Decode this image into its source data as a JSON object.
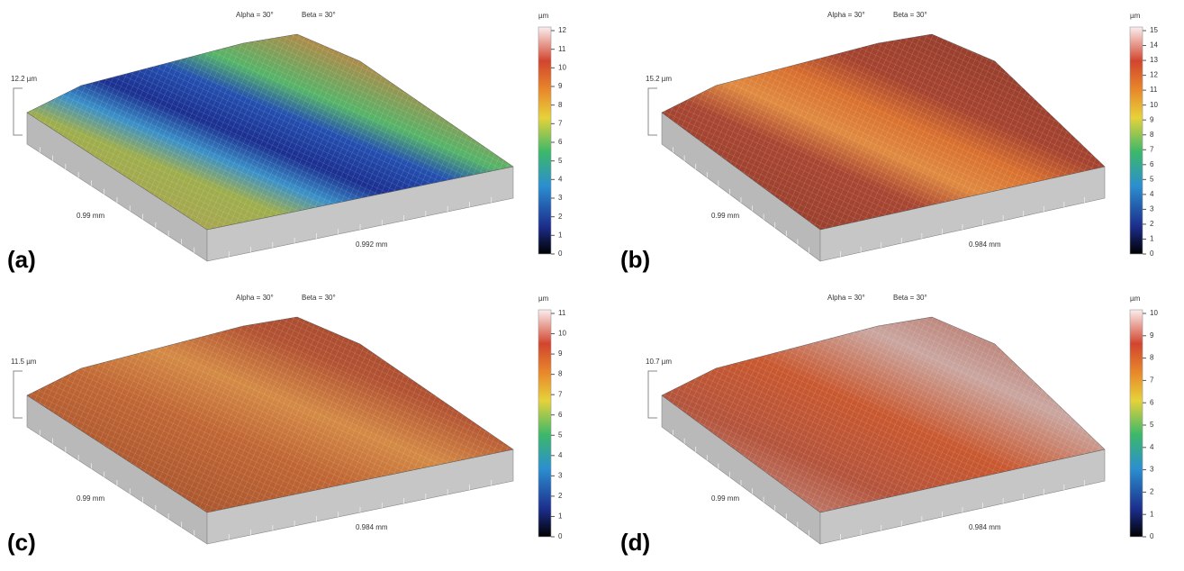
{
  "panels": [
    {
      "label": "(a)",
      "alpha": "Alpha = 30°",
      "beta": "Beta = 30°",
      "unit": "µm",
      "z_label": "12.2 µm",
      "x_label": "0.99 mm",
      "y_label": "0.992 mm",
      "colorbar_ticks": [
        0,
        1,
        2,
        3,
        4,
        5,
        6,
        7,
        8,
        9,
        10,
        11,
        12
      ]
    },
    {
      "label": "(b)",
      "alpha": "Alpha = 30°",
      "beta": "Beta = 30°",
      "unit": "µm",
      "z_label": "15.2 µm",
      "x_label": "0.99 mm",
      "y_label": "0.984 mm",
      "colorbar_ticks": [
        0,
        1,
        2,
        3,
        4,
        5,
        6,
        7,
        8,
        9,
        10,
        11,
        12,
        13,
        14,
        15
      ]
    },
    {
      "label": "(c)",
      "alpha": "Alpha = 30°",
      "beta": "Beta = 30°",
      "unit": "µm",
      "z_label": "11.5 µm",
      "x_label": "0.99 mm",
      "y_label": "0.984 mm",
      "colorbar_ticks": [
        0,
        1,
        2,
        3,
        4,
        5,
        6,
        7,
        8,
        9,
        10,
        11
      ]
    },
    {
      "label": "(d)",
      "alpha": "Alpha = 30°",
      "beta": "Beta = 30°",
      "unit": "µm",
      "z_label": "10.7 µm",
      "x_label": "0.99 mm",
      "y_label": "0.984 mm",
      "colorbar_ticks": [
        0,
        1,
        2,
        3,
        4,
        5,
        6,
        7,
        8,
        9,
        10
      ]
    }
  ]
}
